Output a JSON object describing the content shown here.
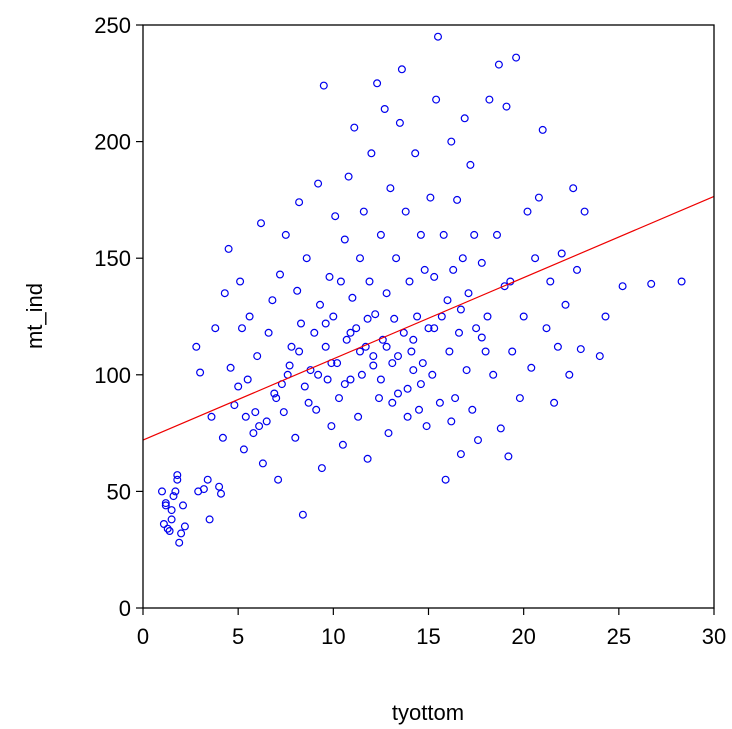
{
  "chart_data": {
    "type": "scatter",
    "xlabel": "tyottom",
    "ylabel": "mt_ind",
    "xlim": [
      0,
      30
    ],
    "ylim": [
      0,
      250
    ],
    "xticks": [
      0,
      5,
      10,
      15,
      20,
      25,
      30
    ],
    "yticks": [
      0,
      50,
      100,
      150,
      200,
      250
    ],
    "xtick_labels": [
      "0",
      "5",
      "10",
      "15",
      "20",
      "25",
      "30"
    ],
    "ytick_labels": [
      "0",
      "50",
      "100",
      "150",
      "200",
      "250"
    ],
    "grid": false,
    "legend": "none",
    "colors": {
      "points": "#0000ee",
      "fit_line": "#ee0000",
      "axes": "#000000"
    },
    "fit_line": {
      "x": [
        0,
        30
      ],
      "y": [
        72,
        176.5
      ]
    },
    "series": [
      {
        "marker": "open-circle",
        "points": [
          [
            1.0,
            50
          ],
          [
            1.1,
            36
          ],
          [
            1.2,
            45
          ],
          [
            1.3,
            34
          ],
          [
            1.4,
            33
          ],
          [
            1.5,
            42
          ],
          [
            1.6,
            48
          ],
          [
            1.7,
            50
          ],
          [
            1.8,
            57
          ],
          [
            1.9,
            28
          ],
          [
            2.0,
            32
          ],
          [
            2.1,
            44
          ],
          [
            1.5,
            38
          ],
          [
            2.2,
            35
          ],
          [
            1.8,
            55
          ],
          [
            1.2,
            44
          ],
          [
            2.9,
            50
          ],
          [
            3.0,
            101
          ],
          [
            2.8,
            112
          ],
          [
            3.2,
            51
          ],
          [
            3.4,
            55
          ],
          [
            3.5,
            38
          ],
          [
            3.6,
            82
          ],
          [
            3.8,
            120
          ],
          [
            4.0,
            52
          ],
          [
            4.1,
            49
          ],
          [
            4.3,
            135
          ],
          [
            4.5,
            154
          ],
          [
            4.6,
            103
          ],
          [
            4.8,
            87
          ],
          [
            5.0,
            95
          ],
          [
            5.1,
            140
          ],
          [
            5.2,
            120
          ],
          [
            5.3,
            68
          ],
          [
            5.5,
            98
          ],
          [
            5.6,
            125
          ],
          [
            5.8,
            75
          ],
          [
            6.0,
            108
          ],
          [
            6.2,
            165
          ],
          [
            6.3,
            62
          ],
          [
            6.5,
            80
          ],
          [
            6.6,
            118
          ],
          [
            6.8,
            132
          ],
          [
            7.0,
            90
          ],
          [
            7.1,
            55
          ],
          [
            7.2,
            143
          ],
          [
            7.4,
            84
          ],
          [
            7.5,
            160
          ],
          [
            7.6,
            100
          ],
          [
            7.8,
            112
          ],
          [
            8.0,
            73
          ],
          [
            8.1,
            136
          ],
          [
            8.2,
            174
          ],
          [
            8.3,
            122
          ],
          [
            8.4,
            40
          ],
          [
            8.5,
            95
          ],
          [
            8.6,
            150
          ],
          [
            8.8,
            102
          ],
          [
            9.0,
            118
          ],
          [
            9.1,
            85
          ],
          [
            9.2,
            182
          ],
          [
            9.3,
            130
          ],
          [
            9.4,
            60
          ],
          [
            9.5,
            224
          ],
          [
            9.6,
            112
          ],
          [
            9.7,
            98
          ],
          [
            9.8,
            142
          ],
          [
            9.9,
            78
          ],
          [
            10.0,
            125
          ],
          [
            10.1,
            168
          ],
          [
            10.2,
            105
          ],
          [
            10.3,
            90
          ],
          [
            10.4,
            140
          ],
          [
            10.5,
            70
          ],
          [
            10.6,
            158
          ],
          [
            10.7,
            115
          ],
          [
            10.8,
            185
          ],
          [
            10.9,
            98
          ],
          [
            11.0,
            133
          ],
          [
            11.1,
            206
          ],
          [
            11.2,
            120
          ],
          [
            11.3,
            82
          ],
          [
            11.4,
            150
          ],
          [
            11.5,
            100
          ],
          [
            11.6,
            170
          ],
          [
            11.7,
            112
          ],
          [
            11.8,
            64
          ],
          [
            11.9,
            140
          ],
          [
            12.0,
            195
          ],
          [
            12.1,
            108
          ],
          [
            12.2,
            126
          ],
          [
            12.3,
            225
          ],
          [
            12.4,
            90
          ],
          [
            12.5,
            160
          ],
          [
            12.6,
            115
          ],
          [
            12.7,
            214
          ],
          [
            12.8,
            135
          ],
          [
            12.9,
            75
          ],
          [
            13.0,
            180
          ],
          [
            13.1,
            105
          ],
          [
            13.2,
            124
          ],
          [
            13.3,
            150
          ],
          [
            13.4,
            92
          ],
          [
            13.5,
            208
          ],
          [
            13.6,
            231
          ],
          [
            13.7,
            118
          ],
          [
            13.8,
            170
          ],
          [
            13.9,
            82
          ],
          [
            14.0,
            140
          ],
          [
            14.1,
            110
          ],
          [
            14.2,
            102
          ],
          [
            14.3,
            195
          ],
          [
            14.4,
            125
          ],
          [
            14.5,
            85
          ],
          [
            14.6,
            160
          ],
          [
            14.7,
            105
          ],
          [
            14.8,
            145
          ],
          [
            14.9,
            78
          ],
          [
            15.0,
            120
          ],
          [
            15.1,
            176
          ],
          [
            15.2,
            100
          ],
          [
            15.3,
            142
          ],
          [
            15.4,
            218
          ],
          [
            15.5,
            245
          ],
          [
            15.6,
            88
          ],
          [
            15.7,
            125
          ],
          [
            15.8,
            160
          ],
          [
            15.9,
            55
          ],
          [
            16.0,
            132
          ],
          [
            16.1,
            110
          ],
          [
            16.2,
            200
          ],
          [
            16.3,
            145
          ],
          [
            16.4,
            90
          ],
          [
            16.5,
            175
          ],
          [
            16.6,
            118
          ],
          [
            16.7,
            66
          ],
          [
            16.8,
            150
          ],
          [
            16.9,
            210
          ],
          [
            17.0,
            102
          ],
          [
            17.1,
            135
          ],
          [
            17.2,
            190
          ],
          [
            17.3,
            85
          ],
          [
            17.4,
            160
          ],
          [
            17.5,
            120
          ],
          [
            17.6,
            72
          ],
          [
            17.8,
            148
          ],
          [
            18.0,
            110
          ],
          [
            18.2,
            218
          ],
          [
            18.4,
            100
          ],
          [
            18.6,
            160
          ],
          [
            18.7,
            233
          ],
          [
            18.8,
            77
          ],
          [
            19.0,
            138
          ],
          [
            19.1,
            215
          ],
          [
            19.2,
            65
          ],
          [
            19.4,
            110
          ],
          [
            19.6,
            236
          ],
          [
            19.8,
            90
          ],
          [
            20.0,
            125
          ],
          [
            20.2,
            170
          ],
          [
            20.4,
            103
          ],
          [
            20.6,
            150
          ],
          [
            20.8,
            176
          ],
          [
            21.0,
            205
          ],
          [
            21.2,
            120
          ],
          [
            21.4,
            140
          ],
          [
            21.6,
            88
          ],
          [
            21.8,
            112
          ],
          [
            22.0,
            152
          ],
          [
            22.2,
            130
          ],
          [
            22.4,
            100
          ],
          [
            22.6,
            180
          ],
          [
            22.8,
            145
          ],
          [
            23.0,
            111
          ],
          [
            23.2,
            170
          ],
          [
            24.0,
            108
          ],
          [
            24.3,
            125
          ],
          [
            25.2,
            138
          ],
          [
            26.7,
            139
          ],
          [
            28.3,
            140
          ],
          [
            6.1,
            78
          ],
          [
            7.3,
            96
          ],
          [
            8.7,
            88
          ],
          [
            9.9,
            105
          ],
          [
            10.6,
            96
          ],
          [
            11.4,
            110
          ],
          [
            12.1,
            104
          ],
          [
            12.8,
            112
          ],
          [
            13.4,
            108
          ],
          [
            14.2,
            115
          ],
          [
            5.4,
            82
          ],
          [
            6.9,
            92
          ],
          [
            8.2,
            110
          ],
          [
            9.6,
            122
          ],
          [
            10.9,
            118
          ],
          [
            12.5,
            98
          ],
          [
            13.9,
            94
          ],
          [
            15.3,
            120
          ],
          [
            16.7,
            128
          ],
          [
            18.1,
            125
          ],
          [
            4.2,
            73
          ],
          [
            5.9,
            84
          ],
          [
            7.7,
            104
          ],
          [
            9.2,
            100
          ],
          [
            11.8,
            124
          ],
          [
            13.1,
            88
          ],
          [
            14.6,
            96
          ],
          [
            16.2,
            80
          ],
          [
            17.8,
            116
          ],
          [
            19.3,
            140
          ]
        ]
      }
    ]
  }
}
